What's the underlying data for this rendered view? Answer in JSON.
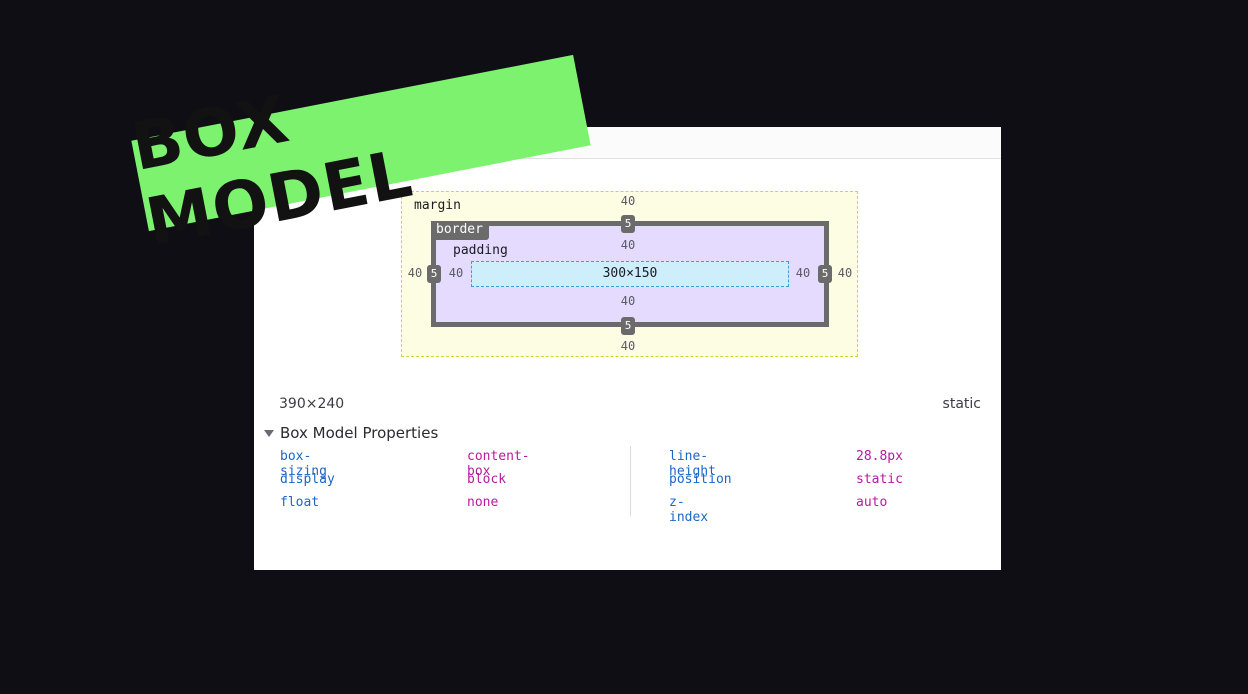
{
  "title_banner": "BOX MODEL",
  "box_model": {
    "margin_label": "margin",
    "border_label": "border",
    "padding_label": "padding",
    "margin": {
      "top": "40",
      "right": "40",
      "bottom": "40",
      "left": "40"
    },
    "border": {
      "top": "5",
      "right": "5",
      "bottom": "5",
      "left": "5"
    },
    "padding": {
      "top": "40",
      "right": "40",
      "bottom": "40",
      "left": "40"
    },
    "content_size": "300×150"
  },
  "element_size": "390×240",
  "position_value": "static",
  "properties_section": {
    "title": "Box Model Properties",
    "left": [
      {
        "name": "box-sizing",
        "value": "content-box"
      },
      {
        "name": "display",
        "value": "block"
      },
      {
        "name": "float",
        "value": "none"
      }
    ],
    "right": [
      {
        "name": "line-height",
        "value": "28.8px"
      },
      {
        "name": "position",
        "value": "static"
      },
      {
        "name": "z-index",
        "value": "auto"
      }
    ]
  },
  "colors": {
    "banner_bg": "#7cf26f",
    "margin_bg": "#fdfde4",
    "border_color": "#6b6b6b",
    "padding_bg": "#e4dbff",
    "content_bg": "#cfeefb",
    "prop_name": "#1a67c7",
    "prop_value": "#b81aa0"
  }
}
